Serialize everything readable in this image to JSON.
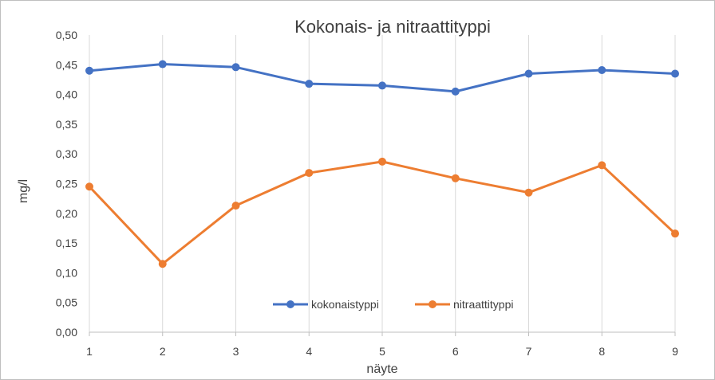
{
  "chart_data": {
    "type": "line",
    "title": "Kokonais-  ja nitraattityppi",
    "xlabel": "näyte",
    "ylabel": "mg/l",
    "x": [
      "1",
      "2",
      "3",
      "4",
      "5",
      "6",
      "7",
      "8",
      "9"
    ],
    "ylim": [
      0,
      0.5
    ],
    "yticks": [
      "0,00",
      "0,05",
      "0,10",
      "0,15",
      "0,20",
      "0,25",
      "0,30",
      "0,35",
      "0,40",
      "0,45",
      "0,50"
    ],
    "grid": "vertical",
    "legend_position": "bottom-center",
    "series": [
      {
        "name": "kokonaistyppi",
        "color": "#4472C4",
        "values": [
          0.44,
          0.451,
          0.446,
          0.418,
          0.415,
          0.405,
          0.435,
          0.441,
          0.435
        ]
      },
      {
        "name": "nitraattityppi",
        "color": "#ED7D31",
        "values": [
          0.245,
          0.115,
          0.213,
          0.268,
          0.287,
          0.259,
          0.235,
          0.281,
          0.166
        ]
      }
    ]
  }
}
